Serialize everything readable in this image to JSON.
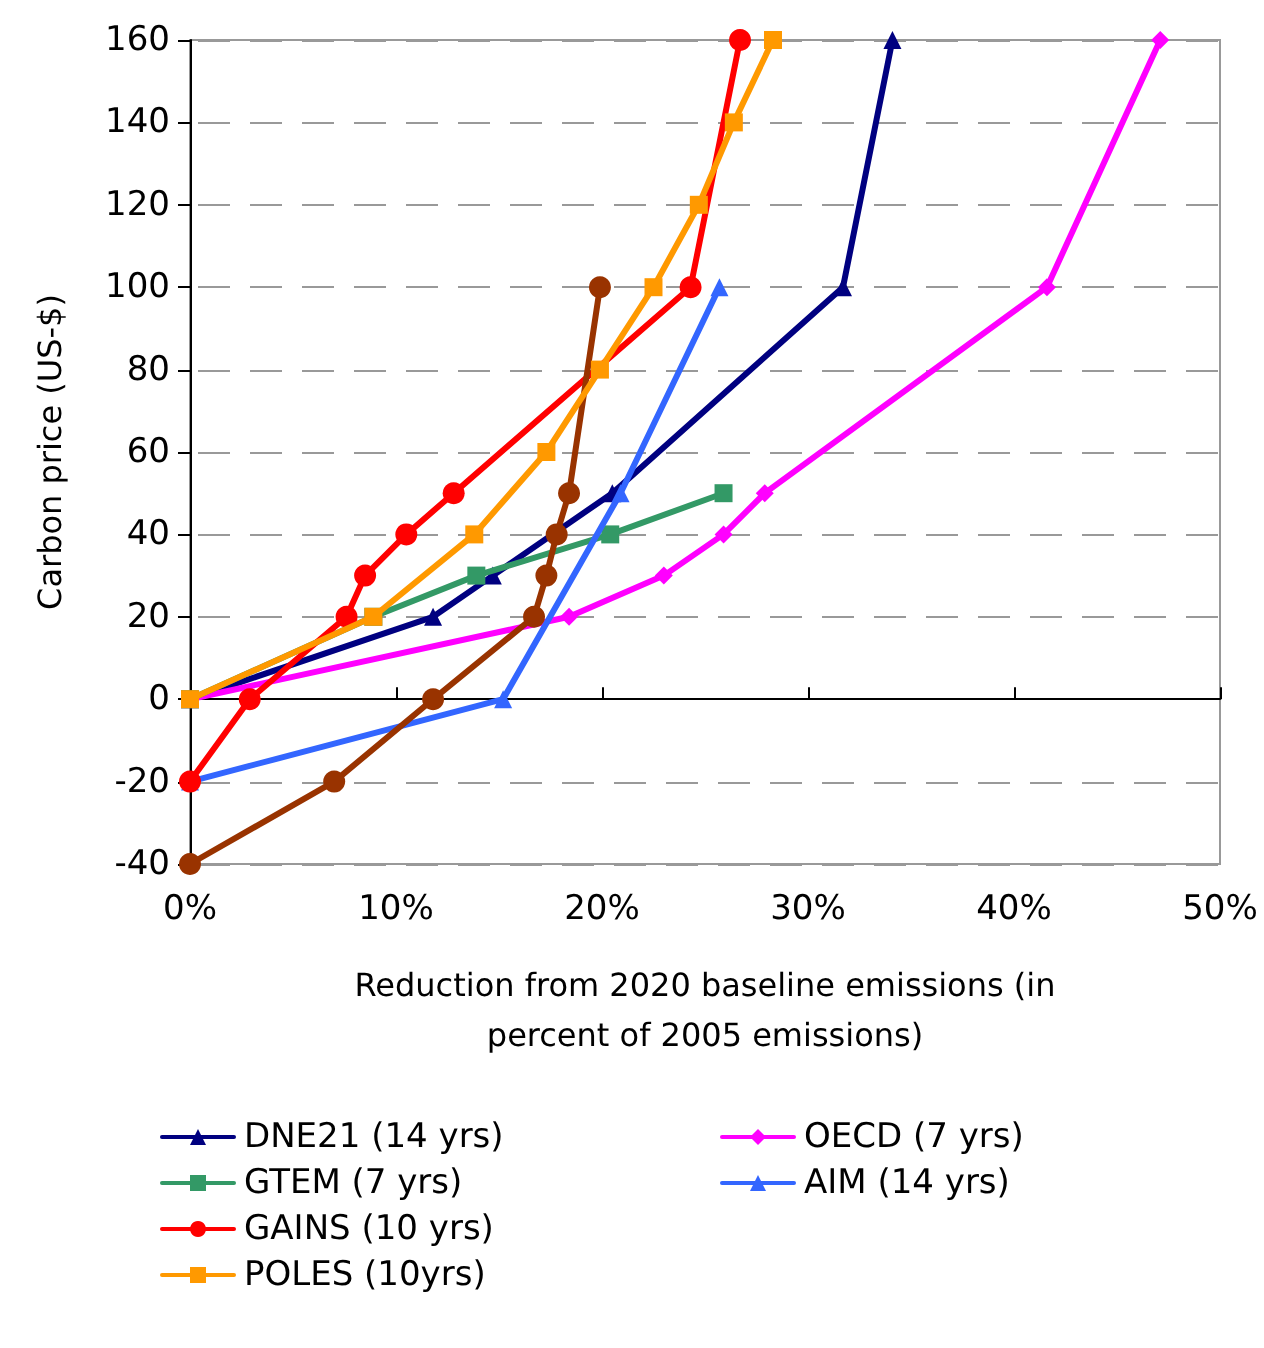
{
  "chart_data": {
    "type": "line",
    "xlabel": "Reduction from 2020 baseline emissions (in percent of 2005 emissions)",
    "ylabel": "Carbon price (US-$)",
    "xlim": [
      0,
      50
    ],
    "xticks": [
      {
        "value": 0,
        "label": "0%"
      },
      {
        "value": 10,
        "label": "10%"
      },
      {
        "value": 20,
        "label": "20%"
      },
      {
        "value": 30,
        "label": "30%"
      },
      {
        "value": 40,
        "label": "40%"
      },
      {
        "value": 50,
        "label": "50%"
      }
    ],
    "ylim": [
      -40,
      160
    ],
    "yticks": [
      -40,
      -20,
      0,
      20,
      40,
      60,
      80,
      100,
      120,
      140,
      160
    ],
    "grid": "y",
    "legend": "bottom",
    "line_style": "solid",
    "series": [
      {
        "name": "DNE21 (14 yrs)",
        "color": "#000080",
        "marker": "triangle",
        "x": [
          0,
          11.8,
          14.7,
          20.5,
          31.7,
          34.1
        ],
        "values": [
          0,
          20,
          30,
          50,
          100,
          160
        ]
      },
      {
        "name": "OECD (7 yrs)",
        "color": "#ff00ff",
        "marker": "diamond",
        "x": [
          0,
          18.4,
          23,
          25.9,
          27.9,
          41.6,
          47.1
        ],
        "values": [
          0,
          20,
          30,
          40,
          50,
          100,
          160
        ]
      },
      {
        "name": "GTEM (7 yrs)",
        "color": "#339966",
        "marker": "square",
        "x": [
          0,
          8.9,
          13.9,
          20.4,
          25.9
        ],
        "values": [
          0,
          20,
          30,
          40,
          50
        ]
      },
      {
        "name": "AIM (14 yrs)",
        "color": "#3366ff",
        "marker": "triangle",
        "x": [
          0,
          15.2,
          20.9,
          25.7
        ],
        "values": [
          -20,
          0,
          50,
          100
        ]
      },
      {
        "name": "GAINS (10 yrs)",
        "color": "#ff0000",
        "marker": "circle",
        "x": [
          0,
          2.9,
          7.6,
          8.5,
          10.5,
          12.8,
          24.3,
          26.7
        ],
        "values": [
          -20,
          0,
          20,
          30,
          40,
          50,
          100,
          160
        ]
      },
      {
        "color": "#993300",
        "marker": "circle",
        "x": [
          0,
          7,
          11.8,
          16.7,
          17.3,
          17.8,
          18.4,
          19.9
        ],
        "values": [
          -40,
          -20,
          0,
          20,
          30,
          40,
          50,
          100
        ]
      },
      {
        "name": "POLES (10yrs)",
        "color": "#ff9900",
        "marker": "square",
        "x": [
          0,
          8.9,
          13.8,
          17.3,
          19.9,
          22.5,
          24.7,
          26.4,
          28.3
        ],
        "values": [
          0,
          20,
          40,
          60,
          80,
          100,
          120,
          140,
          160
        ]
      }
    ]
  }
}
